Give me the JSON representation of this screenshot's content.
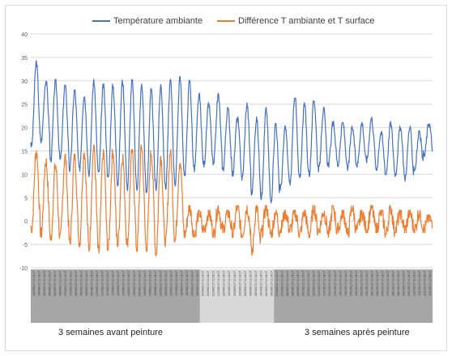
{
  "chart_data": {
    "type": "line",
    "title": "",
    "xlabel": "",
    "ylabel": "",
    "ylim": [
      -10,
      40
    ],
    "yticks": [
      -10,
      -5,
      0,
      5,
      10,
      15,
      20,
      25,
      30,
      35,
      40
    ],
    "grid": true,
    "legend": "top-center",
    "series": [
      {
        "name": "Température ambiante",
        "color": "#4472c4"
      },
      {
        "name": "Différence T ambiante et T surface",
        "color": "#ed7d31"
      }
    ],
    "x_tick_labels": [
      "04/09/2017 00:14:07",
      "04/09/2017 11:14:07",
      "05/09/2017 00:14:07",
      "05/09/2017 11:14:07",
      "06/09/2017 00:14:07",
      "06/09/2017 11:14:07",
      "07/09/2017 00:14:07",
      "07/09/2017 11:14:07",
      "08/09/2017 00:14:07",
      "08/09/2017 11:14:07",
      "09/09/2017 00:14:07",
      "09/09/2017 11:14:07",
      "10/09/2017 00:14:07",
      "10/09/2017 11:14:07",
      "11/09/2017 00:14:07",
      "11/09/2017 11:14:07",
      "12/09/2017 00:14:07",
      "12/09/2017 11:14:07",
      "13/09/2017 00:14:07",
      "13/09/2017 11:14:07",
      "14/09/2017 00:14:07",
      "14/09/2017 11:14:07",
      "15/09/2017 00:14:07",
      "15/09/2017 11:14:07",
      "16/09/2017 00:14:07",
      "16/09/2017 11:14:07",
      "17/09/2017 00:14:07",
      "17/09/2017 11:14:07",
      "18/09/2017 00:14:07",
      "18/09/2017 11:14:07",
      "19/09/2017 00:14:07",
      "19/09/2017 11:14:07",
      "20/09/2017 00:14:07",
      "20/09/2017 11:14:07",
      "21/09/2017 00:14:07",
      "21/09/2017 11:14:07",
      "22/09/2017 00:14:07",
      "22/09/2017 11:14:07",
      "23/09/2017 00:14:07",
      "23/09/2017 11:14:07",
      "24/09/2017 00:14:07",
      "24/09/2017 11:14:07",
      "25/09/2017 00:14:07",
      "25/09/2017 11:14:07",
      "26/09/2017 00:14:07",
      "26/09/2017 11:14:07",
      "27/09/2017 00:14:07",
      "27/09/2017 11:14:07",
      "28/09/2017 00:14:07",
      "28/09/2017 11:14:07",
      "29/09/2017 00:14:07",
      "29/09/2017 11:14:07",
      "30/09/2017 00:14:07",
      "30/09/2017 11:14:07",
      "01/10/2017 00:14:07",
      "01/10/2017 11:14:07",
      "02/10/2017 00:14:07",
      "02/10/2017 11:14:07",
      "03/10/2017 00:14:07",
      "03/10/2017 11:14:07",
      "04/10/2017 00:14:07",
      "04/10/2017 11:14:07",
      "05/10/2017 00:14:07",
      "05/10/2017 11:14:07",
      "06/10/2017 00:14:07",
      "06/10/2017 11:14:07",
      "07/10/2017 00:14:07",
      "07/10/2017 11:14:07",
      "08/10/2017 00:14:07",
      "08/10/2017 11:14:07",
      "09/10/2017 00:14:07",
      "09/10/2017 11:14:07",
      "10/10/2017 00:14:07",
      "10/10/2017 11:14:07",
      "11/10/2017 00:14:07",
      "11/10/2017 11:14:07"
    ],
    "x_regions": [
      {
        "label": "3 semaines avant peinture",
        "from_tick": 0,
        "to_tick": 31,
        "color": "#a6a6a6"
      },
      {
        "label": "",
        "from_tick": 32,
        "to_tick": 45,
        "color": "#d9d9d9"
      },
      {
        "label": "3 semaines après peinture",
        "from_tick": 46,
        "to_tick": 75,
        "color": "#a6a6a6"
      }
    ],
    "daily": {
      "temperature_max": [
        34,
        30,
        30,
        29,
        28,
        27,
        30,
        29,
        29,
        30,
        30,
        29,
        28,
        29,
        30,
        31,
        30,
        27,
        25,
        27,
        24,
        22,
        25,
        22,
        24,
        21,
        20,
        27,
        25,
        26,
        24,
        21,
        21,
        20,
        21,
        22,
        19,
        21,
        20,
        20,
        19,
        21
      ],
      "temperature_min": [
        16,
        17,
        13,
        13,
        11,
        11,
        10,
        10,
        9,
        8,
        7,
        7,
        6,
        7,
        7,
        8,
        10,
        11,
        12,
        12,
        11,
        10,
        9,
        6,
        5,
        4,
        7,
        8,
        9,
        10,
        11,
        12,
        12,
        11,
        12,
        13,
        11,
        10,
        10,
        9,
        11,
        14
      ],
      "difference_max": [
        15,
        13,
        12,
        14,
        14,
        15,
        16,
        15,
        15,
        14,
        15,
        16,
        15,
        14,
        15,
        13,
        3,
        2,
        2,
        3,
        2,
        3,
        3,
        3,
        3,
        2,
        2,
        2,
        2,
        3,
        2,
        3,
        2,
        3,
        2,
        3,
        2,
        3,
        2,
        2,
        2,
        1
      ],
      "difference_min": [
        -2,
        -3,
        -4,
        -4,
        -5,
        -5,
        -6,
        -7,
        -6,
        -5,
        -5,
        -6,
        -6,
        -7,
        -5,
        -4,
        -3,
        -3,
        -2,
        -3,
        -2,
        -3,
        -3,
        -7,
        -3,
        -3,
        -2,
        -2,
        -3,
        -3,
        -2,
        -3,
        -2,
        -3,
        -2,
        -2,
        -2,
        -3,
        -2,
        -2,
        -2,
        -2
      ]
    }
  },
  "annotations": {
    "before": "3 semaines avant peinture",
    "after": "3 semaines après peinture"
  }
}
